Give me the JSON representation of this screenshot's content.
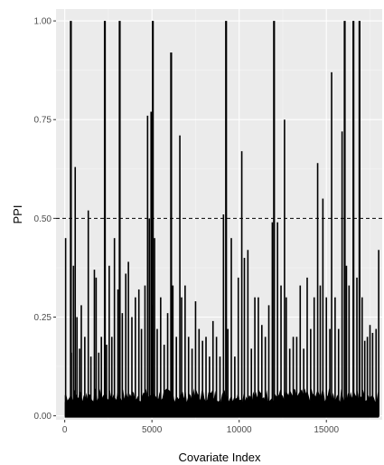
{
  "chart_data": {
    "type": "bar",
    "xlabel": "Covariate Index",
    "ylabel": "PPI",
    "xlim": [
      -500,
      18200
    ],
    "ylim": [
      -0.01,
      1.03
    ],
    "x_ticks": [
      0,
      5000,
      10000,
      15000
    ],
    "x_tick_labels": [
      "0",
      "5000",
      "10000",
      "15000"
    ],
    "y_ticks": [
      0.0,
      0.25,
      0.5,
      0.75,
      1.0
    ],
    "y_tick_labels": [
      "0.00",
      "0.25",
      "0.50",
      "0.75",
      "1.00"
    ],
    "reference_line": {
      "y": 0.5,
      "style": "dashed"
    },
    "grid": true,
    "legend": "none",
    "colors": {
      "panel": "#ebebeb",
      "grid_major": "#ffffff",
      "grid_minor": "#f5f5f5",
      "bars": "#000000",
      "reference_line": "#000000"
    },
    "baseline_band_max": 0.07,
    "x": [
      50,
      350,
      380,
      500,
      600,
      700,
      850,
      950,
      1150,
      1350,
      1500,
      1700,
      1800,
      1950,
      2100,
      2300,
      2400,
      2550,
      2700,
      2850,
      3050,
      3150,
      3300,
      3500,
      3650,
      3850,
      4050,
      4250,
      4400,
      4600,
      4750,
      4850,
      4950,
      5000,
      5050,
      5150,
      5300,
      5500,
      5700,
      5900,
      6100,
      6200,
      6400,
      6600,
      6700,
      6900,
      7100,
      7300,
      7500,
      7700,
      7900,
      8100,
      8300,
      8500,
      8700,
      8900,
      9100,
      9250,
      9350,
      9550,
      9750,
      9950,
      10150,
      10300,
      10500,
      10700,
      10900,
      11100,
      11300,
      11500,
      11700,
      11900,
      12000,
      12200,
      12400,
      12600,
      12700,
      12900,
      13100,
      13300,
      13500,
      13700,
      13900,
      14100,
      14300,
      14500,
      14650,
      14800,
      15000,
      15200,
      15300,
      15500,
      15700,
      15900,
      16050,
      16150,
      16300,
      16550,
      16750,
      16900,
      17050,
      17200,
      17350,
      17500,
      17650,
      17850,
      18000
    ],
    "y": [
      0.45,
      1.0,
      0.16,
      0.38,
      0.63,
      0.25,
      0.17,
      0.28,
      0.2,
      0.52,
      0.15,
      0.37,
      0.35,
      0.16,
      0.2,
      1.0,
      0.18,
      0.38,
      0.2,
      0.45,
      0.32,
      1.0,
      0.26,
      0.36,
      0.39,
      0.25,
      0.3,
      0.32,
      0.22,
      0.33,
      0.76,
      0.5,
      0.77,
      0.28,
      1.0,
      0.45,
      0.22,
      0.3,
      0.18,
      0.26,
      0.92,
      0.33,
      0.2,
      0.71,
      0.3,
      0.33,
      0.2,
      0.17,
      0.29,
      0.22,
      0.19,
      0.2,
      0.15,
      0.24,
      0.2,
      0.15,
      0.51,
      1.0,
      0.22,
      0.45,
      0.15,
      0.35,
      0.67,
      0.4,
      0.42,
      0.17,
      0.3,
      0.3,
      0.23,
      0.2,
      0.28,
      0.49,
      1.0,
      0.49,
      0.33,
      0.75,
      0.3,
      0.17,
      0.2,
      0.2,
      0.33,
      0.17,
      0.35,
      0.22,
      0.3,
      0.64,
      0.33,
      0.55,
      0.3,
      0.22,
      0.87,
      0.3,
      0.22,
      0.72,
      1.0,
      0.38,
      0.33,
      1.0,
      0.35,
      1.0,
      0.3,
      0.19,
      0.2,
      0.23,
      0.21,
      0.22,
      0.42
    ]
  }
}
